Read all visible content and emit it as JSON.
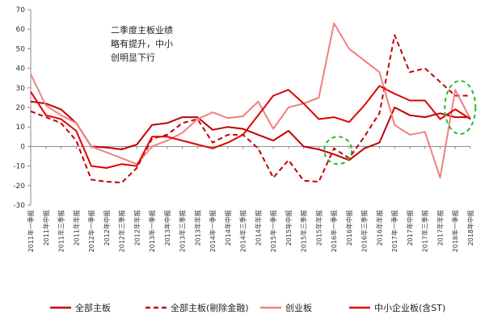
{
  "chart_data": {
    "type": "line",
    "categories": [
      "2011年一季报",
      "2011年中报",
      "2011年三季报",
      "2011年年报",
      "2012年一季报",
      "2012年中报",
      "2012年三季报",
      "2012年年报",
      "2013年一季报",
      "2013年中报",
      "2013年三季报",
      "2013年年报",
      "2014年一季报",
      "2014年中报",
      "2014年三季报",
      "2014年年报",
      "2015年一季报",
      "2015年中报",
      "2015年三季报",
      "2015年年报",
      "2016年一季报",
      "2016年中报",
      "2016年三季报",
      "2016年年报",
      "2017年一季报",
      "2017年中报",
      "2017年三季报",
      "2017年年报",
      "2018年一季报",
      "2018年中报"
    ],
    "ylim": [
      -30,
      70
    ],
    "yticks": [
      -30,
      -20,
      -10,
      0,
      10,
      20,
      30,
      40,
      50,
      60,
      70
    ],
    "grid": false,
    "legend_position": "bottom",
    "annotation": [
      "二季度主板业绩",
      "略有提升，中小",
      "创明显下行"
    ],
    "series": [
      {
        "name": "全部主板",
        "color": "#c00000",
        "dash": "solid",
        "values": [
          23,
          22,
          19,
          12,
          0,
          -0.5,
          -1.5,
          1,
          11,
          12,
          15,
          15,
          8.5,
          10,
          9,
          6,
          3,
          8,
          0,
          -1.5,
          -4,
          -7,
          -1,
          2,
          20,
          16,
          15,
          17,
          15,
          15
        ]
      },
      {
        "name": "全部主板(剔除金融)",
        "color": "#c00000",
        "dash": "dashed",
        "values": [
          18,
          15,
          12,
          3,
          -17,
          -18,
          -18.5,
          -11,
          4,
          6,
          12,
          14,
          2,
          6,
          6,
          -1,
          -16,
          -7,
          -17.5,
          -18,
          -1,
          -6,
          5,
          17,
          57,
          38,
          40,
          33,
          26,
          26
        ]
      },
      {
        "name": "创业板",
        "color": "#f08080",
        "dash": "solid",
        "values": [
          37,
          21,
          16,
          12,
          0,
          -3,
          -6,
          -9,
          0,
          3,
          7,
          14,
          17.5,
          14.5,
          15.5,
          23,
          9,
          20,
          22,
          25,
          63,
          50,
          44,
          38,
          11,
          6,
          7.5,
          -16,
          29,
          14
        ]
      },
      {
        "name": "中小企业板(含ST)",
        "color": "#e00000",
        "dash": "solid",
        "values": [
          28,
          16,
          14,
          8,
          -10,
          -11,
          -9,
          -10,
          5,
          5,
          3,
          1,
          -1,
          2,
          6,
          16,
          26,
          29,
          22,
          14,
          15,
          12.5,
          21,
          31,
          27,
          23.5,
          23.5,
          14,
          19,
          14
        ]
      }
    ],
    "highlights": [
      {
        "shape": "ellipse",
        "color": "#2eb82e",
        "style": "dashed",
        "x_category": "2016年一季报"
      },
      {
        "shape": "ellipse",
        "color": "#2eb82e",
        "style": "dashed",
        "x_category": "2018年一季报"
      }
    ]
  }
}
